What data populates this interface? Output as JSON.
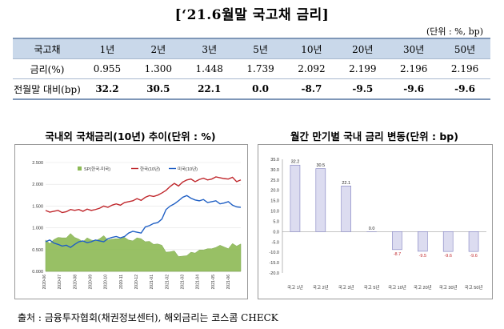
{
  "title": "[‘21.6월말 국고채 금리]",
  "unit": "(단위 : %, bp)",
  "table": {
    "headers": [
      "국고채",
      "1년",
      "2년",
      "3년",
      "5년",
      "10년",
      "20년",
      "30년",
      "50년"
    ],
    "rows": [
      {
        "label": "금리(%)",
        "values": [
          "0.955",
          "1.300",
          "1.448",
          "1.739",
          "2.092",
          "2.199",
          "2.196",
          "2.196"
        ]
      },
      {
        "label": "전월말 대비(bp)",
        "values": [
          "32.2",
          "30.5",
          "22.1",
          "0.0",
          "-8.7",
          "-9.5",
          "-9.6",
          "-9.6"
        ]
      }
    ]
  },
  "left_chart": {
    "caption": "국내외 국채금리(10년) 추이(단위 : %)",
    "chart_data": {
      "type": "line",
      "yticks": [
        "2.500",
        "2.000",
        "1.500",
        "1.000",
        "0.500",
        "0.000"
      ],
      "ylim": [
        0,
        2.5
      ],
      "xticks": [
        "2020-06",
        "2020-07",
        "2020-08",
        "2020-09",
        "2020-10",
        "2020-11",
        "2020-12",
        "2021-01",
        "2021-02",
        "2021-03",
        "2021-04",
        "2021-05",
        "2021-06"
      ],
      "legend": [
        "SP(한국-미국)",
        "한국(10년)",
        "미국(10년)"
      ],
      "series": [
        {
          "name": "한국(10년)",
          "color": "#c0282d",
          "values": [
            1.4,
            1.36,
            1.38,
            1.4,
            1.35,
            1.37,
            1.42,
            1.4,
            1.42,
            1.38,
            1.43,
            1.4,
            1.42,
            1.45,
            1.5,
            1.47,
            1.52,
            1.55,
            1.52,
            1.58,
            1.6,
            1.62,
            1.67,
            1.63,
            1.7,
            1.74,
            1.72,
            1.75,
            1.8,
            1.86,
            1.95,
            2.02,
            1.96,
            2.05,
            2.1,
            2.12,
            2.06,
            2.11,
            2.14,
            2.1,
            2.12,
            2.17,
            2.15,
            2.13,
            2.12,
            2.16,
            2.06,
            2.1
          ]
        },
        {
          "name": "미국(10년)",
          "color": "#1f5fc4",
          "values": [
            0.68,
            0.72,
            0.65,
            0.62,
            0.58,
            0.6,
            0.55,
            0.62,
            0.68,
            0.7,
            0.66,
            0.68,
            0.72,
            0.7,
            0.68,
            0.75,
            0.78,
            0.8,
            0.77,
            0.8,
            0.88,
            0.92,
            0.9,
            0.88,
            1.02,
            1.05,
            1.1,
            1.12,
            1.2,
            1.42,
            1.5,
            1.55,
            1.62,
            1.7,
            1.74,
            1.68,
            1.64,
            1.62,
            1.65,
            1.58,
            1.6,
            1.62,
            1.55,
            1.57,
            1.6,
            1.52,
            1.48,
            1.47
          ]
        },
        {
          "name": "SP(한국-미국)",
          "color": "#8dba55",
          "values": [
            0.72,
            0.64,
            0.73,
            0.78,
            0.77,
            0.77,
            0.87,
            0.78,
            0.74,
            0.68,
            0.77,
            0.72,
            0.7,
            0.75,
            0.82,
            0.72,
            0.74,
            0.75,
            0.75,
            0.78,
            0.72,
            0.7,
            0.77,
            0.75,
            0.68,
            0.69,
            0.62,
            0.63,
            0.6,
            0.44,
            0.45,
            0.47,
            0.34,
            0.35,
            0.36,
            0.44,
            0.42,
            0.49,
            0.49,
            0.52,
            0.52,
            0.55,
            0.6,
            0.56,
            0.52,
            0.64,
            0.58,
            0.63
          ]
        }
      ]
    }
  },
  "right_chart": {
    "caption": "월간 만기별 국내 금리 변동(단위 : bp)",
    "chart_data": {
      "type": "bar",
      "categories": [
        "국고 1년",
        "국고 2년",
        "국고 3년",
        "국고 5년",
        "국고 10년",
        "국고 20년",
        "국고 30년",
        "국고 50년"
      ],
      "values": [
        32.2,
        30.5,
        22.1,
        0.0,
        -8.7,
        -9.5,
        -9.6,
        -9.6
      ],
      "data_labels": [
        "32.2",
        "30.5",
        "22.1",
        "0.0",
        "-8.7",
        "-9.5",
        "-9.6",
        "-9.6"
      ],
      "ylim": [
        -20,
        35
      ],
      "yticks": [
        35,
        30,
        25,
        20,
        15,
        10,
        5,
        0,
        -5,
        -10,
        -15,
        -20
      ],
      "ytick_labels": [
        "35.0",
        "30.0",
        "25.0",
        "20.0",
        "15.0",
        "10.0",
        "5.0",
        "0.0",
        "-5.0",
        "-10.0",
        "-15.0",
        "-20.0"
      ],
      "bar_color": "#dcdcf0",
      "bar_stroke": "#7f7fc0",
      "negative_label_color": "#c0282d"
    }
  },
  "source": "출처 : 금융투자협회(채권정보센터), 해외금리는 코스콤 CHECK"
}
